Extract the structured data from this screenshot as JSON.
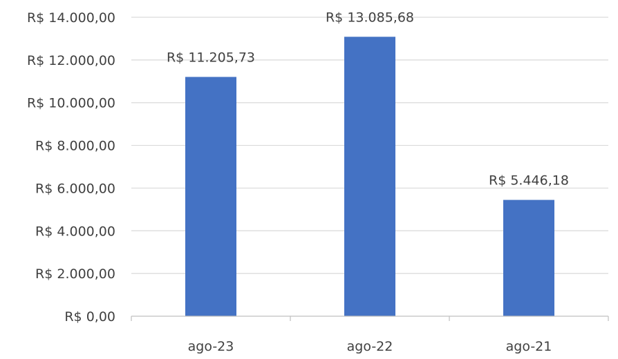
{
  "chart_data": {
    "type": "bar",
    "title": "",
    "xlabel": "",
    "ylabel": "",
    "categories": [
      "ago-23",
      "ago-22",
      "ago-21"
    ],
    "values": [
      11205.73,
      13085.68,
      5446.18
    ],
    "value_labels": [
      "R$ 11.205,73",
      "R$ 13.085,68",
      "R$ 5.446,18"
    ],
    "ylim": [
      0,
      14000
    ],
    "yticks": [
      0,
      2000,
      4000,
      6000,
      8000,
      10000,
      12000,
      14000
    ],
    "ytick_labels": [
      "R$ 0,00",
      "R$ 2.000,00",
      "R$ 4.000,00",
      "R$ 6.000,00",
      "R$ 8.000,00",
      "R$ 10.000,00",
      "R$ 12.000,00",
      "R$ 14.000,00"
    ],
    "grid": true,
    "legend": "none",
    "bar_color": "#4472c4"
  }
}
